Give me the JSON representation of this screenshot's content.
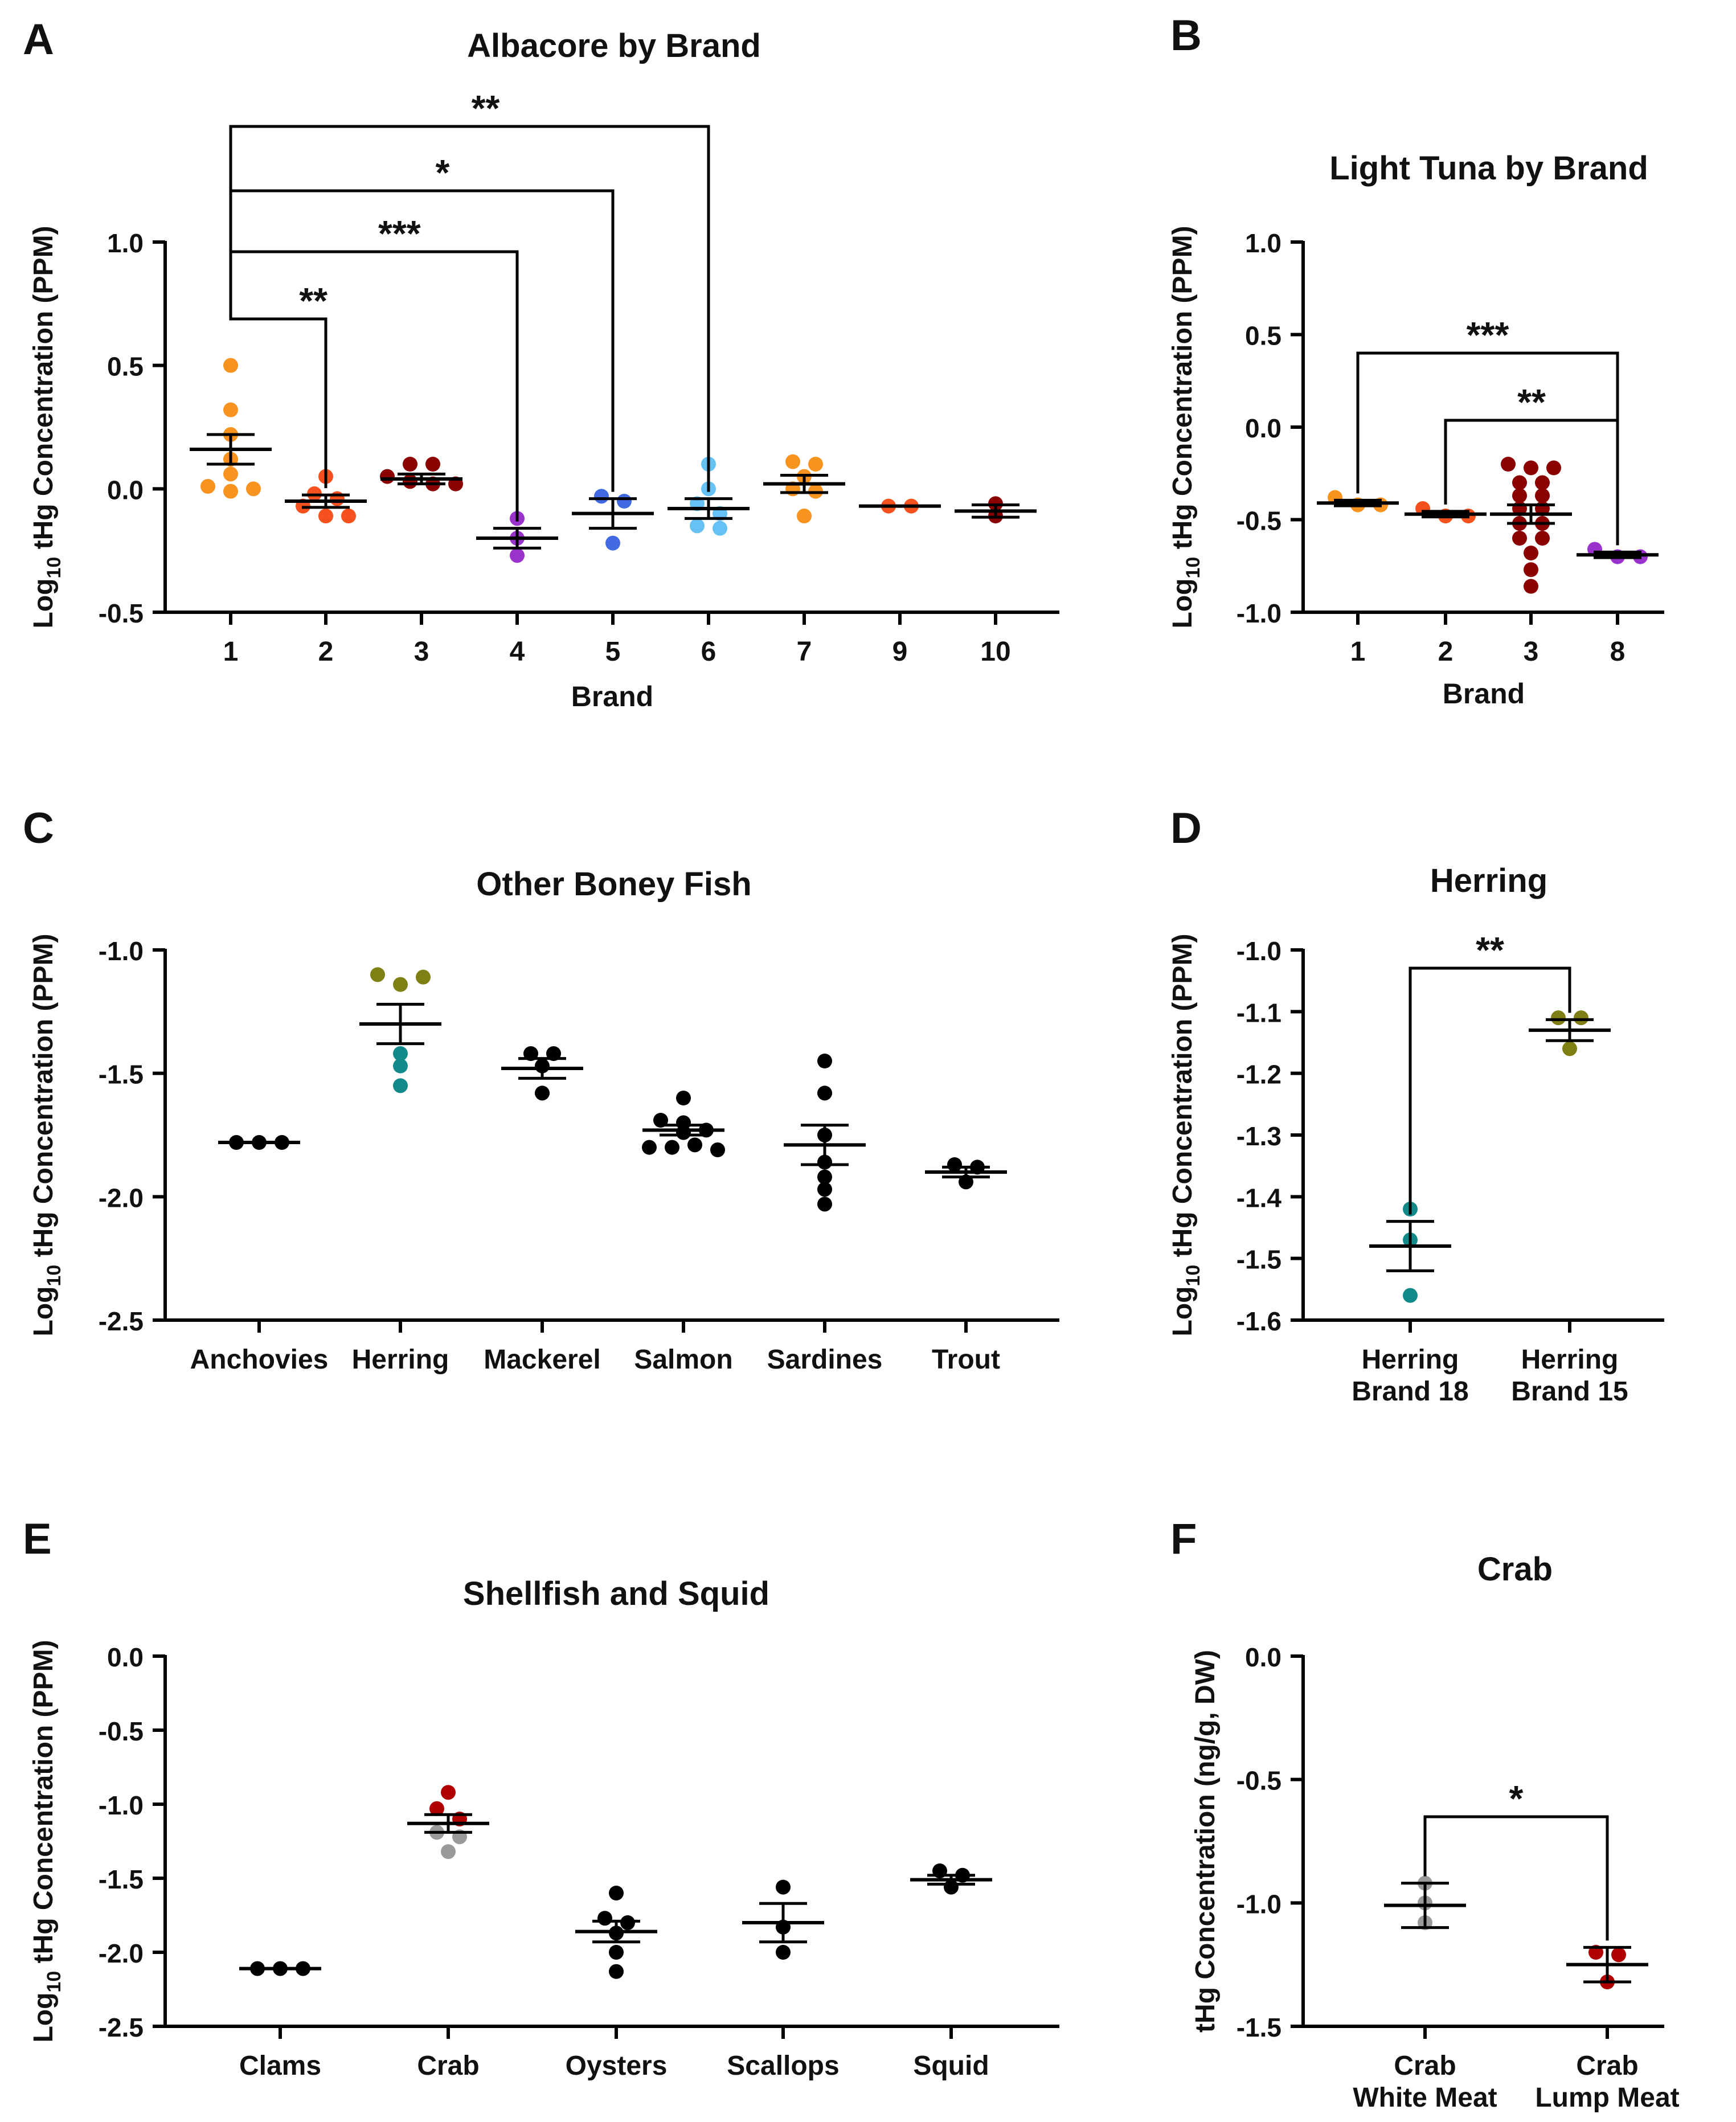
{
  "colors": {
    "orange": "#F7931E",
    "red_orange": "#F4511E",
    "dark_red": "#8B0000",
    "purple": "#9933CC",
    "royal_blue": "#4169E1",
    "light_blue": "#66C2F5",
    "olive": "#7F7F14",
    "teal": "#138A8A",
    "black": "#000000",
    "gray": "#9A9A9A",
    "crimson": "#B00000"
  },
  "chart_data": [
    {
      "id": "A",
      "panel_label": "A",
      "type": "scatter",
      "title": "Albacore by Brand",
      "xlabel": "Brand",
      "ylabel_main": "Log",
      "ylabel_sub": "10",
      "ylabel_rest": " tHg Concentration (PPM)",
      "ylim": [
        -0.5,
        1.0
      ],
      "yticks": [
        -0.5,
        0.0,
        0.5,
        1.0
      ],
      "ytick_labels": [
        "-0.5",
        "0.0",
        "0.5",
        "1.0"
      ],
      "categories": [
        "1",
        "2",
        "3",
        "4",
        "5",
        "6",
        "7",
        "9",
        "10"
      ],
      "series": [
        {
          "category": "1",
          "color": "orange",
          "points": [
            0.5,
            0.32,
            0.22,
            0.12,
            0.06,
            0.01,
            -0.01,
            0.0
          ],
          "mean": 0.16,
          "sem": 0.06
        },
        {
          "category": "2",
          "color": "red_orange",
          "points": [
            0.05,
            -0.02,
            -0.04,
            -0.07,
            -0.11,
            -0.11
          ],
          "mean": -0.05,
          "sem": 0.025
        },
        {
          "category": "3",
          "color": "dark_red",
          "points": [
            0.1,
            0.1,
            0.05,
            0.03,
            0.02,
            0.02
          ],
          "mean": 0.04,
          "sem": 0.02
        },
        {
          "category": "4",
          "color": "purple",
          "points": [
            -0.12,
            -0.2,
            -0.27
          ],
          "mean": -0.2,
          "sem": 0.04
        },
        {
          "category": "5",
          "color": "royal_blue",
          "points": [
            -0.03,
            -0.05,
            -0.22
          ],
          "mean": -0.1,
          "sem": 0.06
        },
        {
          "category": "6",
          "color": "light_blue",
          "points": [
            0.1,
            0.0,
            -0.06,
            -0.1,
            -0.15,
            -0.16
          ],
          "mean": -0.08,
          "sem": 0.04
        },
        {
          "category": "7",
          "color": "orange",
          "points": [
            0.11,
            0.1,
            0.05,
            0.0,
            -0.01,
            -0.11
          ],
          "mean": 0.02,
          "sem": 0.035
        },
        {
          "category": "9",
          "color": "red_orange",
          "points": [
            -0.07,
            -0.07
          ],
          "mean": -0.07,
          "sem": 0.0
        },
        {
          "category": "10",
          "color": "dark_red",
          "points": [
            -0.06,
            -0.11
          ],
          "mean": -0.09,
          "sem": 0.025
        }
      ],
      "brackets": [
        {
          "from": "1",
          "to": "2",
          "label": "**",
          "level": 1
        },
        {
          "from": "1",
          "to": "4",
          "label": "***",
          "level": 2
        },
        {
          "from": "1",
          "to": "5",
          "label": "*",
          "level": 3
        },
        {
          "from": "1",
          "to": "6",
          "label": "**",
          "level": 4
        }
      ]
    },
    {
      "id": "B",
      "panel_label": "B",
      "type": "scatter",
      "title": "Light Tuna by Brand",
      "xlabel": "Brand",
      "ylabel_main": "Log",
      "ylabel_sub": "10",
      "ylabel_rest": " tHg Concentration (PPM)",
      "ylim": [
        -1.0,
        1.0
      ],
      "yticks": [
        -1.0,
        -0.5,
        0.0,
        0.5,
        1.0
      ],
      "ytick_labels": [
        "-1.0",
        "-0.5",
        "0.0",
        "0.5",
        "1.0"
      ],
      "categories": [
        "1",
        "2",
        "3",
        "8"
      ],
      "series": [
        {
          "category": "1",
          "color": "orange",
          "points": [
            -0.38,
            -0.42,
            -0.42
          ],
          "mean": -0.41,
          "sem": 0.015
        },
        {
          "category": "2",
          "color": "red_orange",
          "points": [
            -0.44,
            -0.48,
            -0.48
          ],
          "mean": -0.47,
          "sem": 0.015
        },
        {
          "category": "3",
          "color": "dark_red",
          "points": [
            -0.2,
            -0.22,
            -0.22,
            -0.3,
            -0.3,
            -0.37,
            -0.37,
            -0.44,
            -0.44,
            -0.52,
            -0.52,
            -0.6,
            -0.6,
            -0.68,
            -0.77,
            -0.86
          ],
          "mean": -0.47,
          "sem": 0.05
        },
        {
          "category": "8",
          "color": "purple",
          "points": [
            -0.66,
            -0.7,
            -0.7
          ],
          "mean": -0.69,
          "sem": 0.015
        }
      ],
      "brackets": [
        {
          "from": "2",
          "to": "8",
          "label": "**",
          "level": 1
        },
        {
          "from": "1",
          "to": "8",
          "label": "***",
          "level": 2
        }
      ]
    },
    {
      "id": "C",
      "panel_label": "C",
      "type": "scatter",
      "title": "Other Boney Fish",
      "xlabel": "",
      "ylabel_main": "Log",
      "ylabel_sub": "10",
      "ylabel_rest": " tHg Concentration (PPM)",
      "ylim": [
        -2.5,
        -1.0
      ],
      "yticks": [
        -2.5,
        -2.0,
        -1.5,
        -1.0
      ],
      "ytick_labels": [
        "-2.5",
        "-2.0",
        "-1.5",
        "-1.0"
      ],
      "categories": [
        "Anchovies",
        "Herring",
        "Mackerel",
        "Salmon",
        "Sardines",
        "Trout"
      ],
      "series": [
        {
          "category": "Anchovies",
          "color": "black",
          "points": [
            -1.78,
            -1.78,
            -1.78
          ],
          "mean": -1.78,
          "sem": 0.0
        },
        {
          "category": "Herring",
          "color": "olive",
          "points": [
            -1.1,
            -1.14,
            -1.11
          ],
          "mean": -1.3,
          "sem": 0.08
        },
        {
          "category": "Herring",
          "color": "teal",
          "points": [
            -1.42,
            -1.47,
            -1.55
          ]
        },
        {
          "category": "Mackerel",
          "color": "black",
          "points": [
            -1.42,
            -1.42,
            -1.47,
            -1.58
          ],
          "mean": -1.48,
          "sem": 0.04
        },
        {
          "category": "Salmon",
          "color": "black",
          "points": [
            -1.6,
            -1.69,
            -1.7,
            -1.73,
            -1.74,
            -1.8,
            -1.8,
            -1.79,
            -1.81
          ],
          "mean": -1.73,
          "sem": 0.02
        },
        {
          "category": "Sardines",
          "color": "black",
          "points": [
            -1.45,
            -1.58,
            -1.75,
            -1.86,
            -1.92,
            -1.97,
            -2.03
          ],
          "mean": -1.79,
          "sem": 0.08
        },
        {
          "category": "Trout",
          "color": "black",
          "points": [
            -1.87,
            -1.88,
            -1.94
          ],
          "mean": -1.9,
          "sem": 0.02
        }
      ],
      "brackets": []
    },
    {
      "id": "D",
      "panel_label": "D",
      "type": "scatter",
      "title": "Herring",
      "xlabel": "",
      "ylabel_main": "Log",
      "ylabel_sub": "10",
      "ylabel_rest": " tHg Concentration (PPM)",
      "ylim": [
        -1.6,
        -1.0
      ],
      "yticks": [
        -1.6,
        -1.5,
        -1.4,
        -1.3,
        -1.2,
        -1.1,
        -1.0
      ],
      "ytick_labels": [
        "-1.6",
        "-1.5",
        "-1.4",
        "-1.3",
        "-1.2",
        "-1.1",
        "-1.0"
      ],
      "categories": [
        "Herring|Brand 18",
        "Herring|Brand 15"
      ],
      "series": [
        {
          "category": "Herring|Brand 18",
          "color": "teal",
          "points": [
            -1.42,
            -1.47,
            -1.56
          ],
          "mean": -1.48,
          "sem": 0.04
        },
        {
          "category": "Herring|Brand 15",
          "color": "olive",
          "points": [
            -1.11,
            -1.11,
            -1.16
          ],
          "mean": -1.13,
          "sem": 0.017
        }
      ],
      "brackets": [
        {
          "from": "Herring|Brand 18",
          "to": "Herring|Brand 15",
          "label": "**",
          "level": 1
        }
      ]
    },
    {
      "id": "E",
      "panel_label": "E",
      "type": "scatter",
      "title": "Shellfish and Squid",
      "xlabel": "",
      "ylabel_main": "Log",
      "ylabel_sub": "10",
      "ylabel_rest": " tHg Concentration (PPM)",
      "ylim": [
        -2.5,
        0.0
      ],
      "yticks": [
        -2.5,
        -2.0,
        -1.5,
        -1.0,
        -0.5,
        0.0
      ],
      "ytick_labels": [
        "-2.5",
        "-2.0",
        "-1.5",
        "-1.0",
        "-0.5",
        "0.0"
      ],
      "categories": [
        "Clams",
        "Crab",
        "Oysters",
        "Scallops",
        "Squid"
      ],
      "series": [
        {
          "category": "Clams",
          "color": "black",
          "points": [
            -2.11,
            -2.11,
            -2.11
          ],
          "mean": -2.11,
          "sem": 0.0
        },
        {
          "category": "Crab",
          "color": "crimson",
          "points": [
            -0.92,
            -1.03,
            -1.1
          ],
          "mean": -1.13,
          "sem": 0.06
        },
        {
          "category": "Crab",
          "color": "gray",
          "points": [
            -1.19,
            -1.22,
            -1.32
          ]
        },
        {
          "category": "Oysters",
          "color": "black",
          "points": [
            -1.6,
            -1.77,
            -1.8,
            -1.87,
            -2.0,
            -2.13
          ],
          "mean": -1.86,
          "sem": 0.07
        },
        {
          "category": "Scallops",
          "color": "black",
          "points": [
            -1.56,
            -1.83,
            -2.0
          ],
          "mean": -1.8,
          "sem": 0.13
        },
        {
          "category": "Squid",
          "color": "black",
          "points": [
            -1.45,
            -1.48,
            -1.56
          ],
          "mean": -1.51,
          "sem": 0.03
        }
      ],
      "brackets": []
    },
    {
      "id": "F",
      "panel_label": "F",
      "type": "scatter",
      "title": "Crab",
      "xlabel": "",
      "ylabel_main": "tHg Concentration (ng/g, DW)",
      "ylabel_sub": "",
      "ylabel_rest": "",
      "ylim": [
        -1.5,
        0.0
      ],
      "yticks": [
        -1.5,
        -1.0,
        -0.5,
        0.0
      ],
      "ytick_labels": [
        "-1.5",
        "-1.0",
        "-0.5",
        "0.0"
      ],
      "categories": [
        "Crab|White Meat",
        "Crab|Lump Meat"
      ],
      "series": [
        {
          "category": "Crab|White Meat",
          "color": "gray",
          "points": [
            -0.92,
            -1.0,
            -1.08
          ],
          "mean": -1.01,
          "sem": 0.09
        },
        {
          "category": "Crab|Lump Meat",
          "color": "crimson",
          "points": [
            -1.2,
            -1.21,
            -1.32
          ],
          "mean": -1.25,
          "sem": 0.07
        }
      ],
      "brackets": [
        {
          "from": "Crab|White Meat",
          "to": "Crab|Lump Meat",
          "label": "*",
          "level": 1
        }
      ]
    }
  ]
}
